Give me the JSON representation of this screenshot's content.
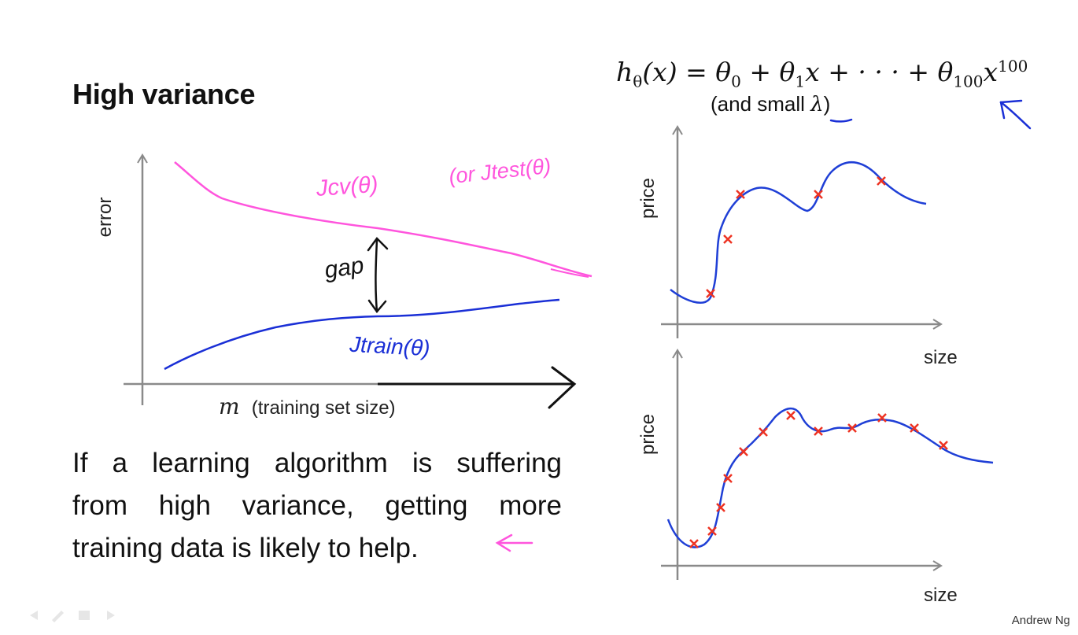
{
  "title": "High variance",
  "formula": {
    "h": "h",
    "h_sub": "θ",
    "lhs": "(x) = θ",
    "t0_sub": "0",
    "plus1": " + θ",
    "t1_sub": "1",
    "mid": "x + · · · + θ",
    "t100_sub": "100",
    "x": "x",
    "exp": "100"
  },
  "lambda_note": {
    "prefix": "(and small ",
    "lambda": "λ",
    "suffix": ")"
  },
  "learning_curve": {
    "ylabel": "error",
    "xlabel_var": "m",
    "xlabel_text": "(training set size)",
    "cv_label": "Jcv(θ)",
    "test_label": "(or Jtest(θ)",
    "train_label": "Jtrain(θ)",
    "gap_label": "gap"
  },
  "plot_top": {
    "ylabel": "price",
    "xlabel": "size"
  },
  "plot_bottom": {
    "ylabel": "price",
    "xlabel": "size"
  },
  "body_lines": [
    "If a learning algorithm is suffering",
    "from high variance, getting more",
    "training data is likely to help."
  ],
  "footer": "Andrew Ng",
  "colors": {
    "cv": "#ff55dd",
    "train": "#1a2fd6",
    "fit": "#1f3fd6",
    "points": "#ee3322",
    "axes": "#8a8a8a"
  }
}
